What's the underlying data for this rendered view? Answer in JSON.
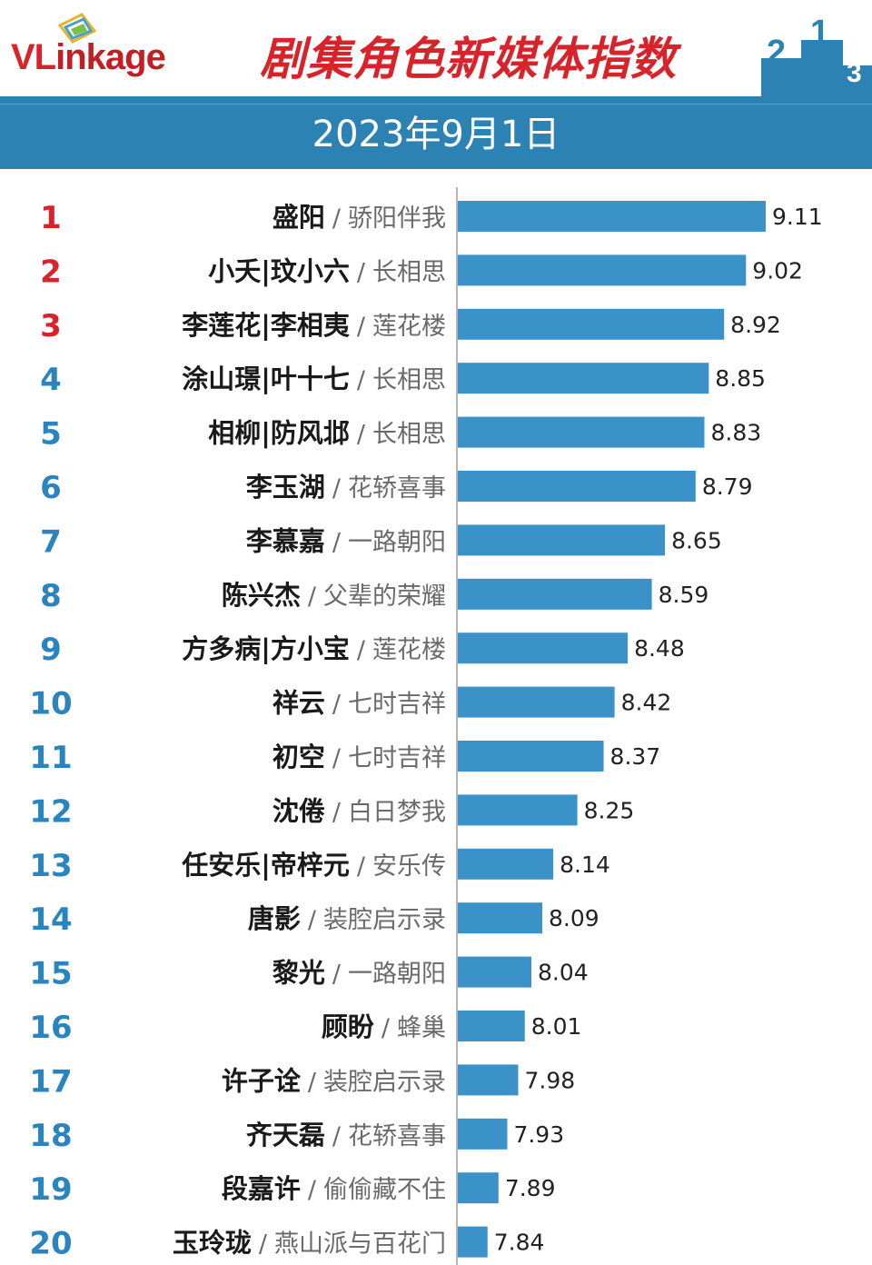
{
  "brand": {
    "logo_main": "VL",
    "logo_rest": "inkage"
  },
  "title": "剧集角色新媒体指数",
  "date": "2023年9月1日",
  "podium_digits": [
    "2",
    "1",
    "3"
  ],
  "colors": {
    "bar": "#3a92c8",
    "title": "#d9232a",
    "rank_top": "#d9232a",
    "rank_other": "#2a85be",
    "date_bar": "#2d82b4",
    "axis": "#b5b5b5"
  },
  "chart_data": {
    "type": "bar",
    "orientation": "horizontal",
    "rows": [
      {
        "rank": "1",
        "role": "盛阳",
        "drama": "骄阳伴我",
        "value": 9.11
      },
      {
        "rank": "2",
        "role": "小夭|玟小六",
        "drama": "长相思",
        "value": 9.02
      },
      {
        "rank": "3",
        "role": "李莲花|李相夷",
        "drama": "莲花楼",
        "value": 8.92
      },
      {
        "rank": "4",
        "role": "涂山璟|叶十七",
        "drama": "长相思",
        "value": 8.85
      },
      {
        "rank": "5",
        "role": "相柳|防风邶",
        "drama": "长相思",
        "value": 8.83
      },
      {
        "rank": "6",
        "role": "李玉湖",
        "drama": "花轿喜事",
        "value": 8.79
      },
      {
        "rank": "7",
        "role": "李慕嘉",
        "drama": "一路朝阳",
        "value": 8.65
      },
      {
        "rank": "8",
        "role": "陈兴杰",
        "drama": "父辈的荣耀",
        "value": 8.59
      },
      {
        "rank": "9",
        "role": "方多病|方小宝",
        "drama": "莲花楼",
        "value": 8.48
      },
      {
        "rank": "10",
        "role": "祥云",
        "drama": "七时吉祥",
        "value": 8.42
      },
      {
        "rank": "11",
        "role": "初空",
        "drama": "七时吉祥",
        "value": 8.37
      },
      {
        "rank": "12",
        "role": "沈倦",
        "drama": "白日梦我",
        "value": 8.25
      },
      {
        "rank": "13",
        "role": "任安乐|帝梓元",
        "drama": "安乐传",
        "value": 8.14
      },
      {
        "rank": "14",
        "role": "唐影",
        "drama": "装腔启示录",
        "value": 8.09
      },
      {
        "rank": "15",
        "role": "黎光",
        "drama": "一路朝阳",
        "value": 8.04
      },
      {
        "rank": "16",
        "role": "顾盼",
        "drama": "蜂巢",
        "value": 8.01
      },
      {
        "rank": "17",
        "role": "许子诠",
        "drama": "装腔启示录",
        "value": 7.98
      },
      {
        "rank": "18",
        "role": "齐天磊",
        "drama": "花轿喜事",
        "value": 7.93
      },
      {
        "rank": "19",
        "role": "段嘉许",
        "drama": "偷偷藏不住",
        "value": 7.89
      },
      {
        "rank": "20",
        "role": "玉玲珑",
        "drama": "燕山派与百花门",
        "value": 7.84
      }
    ],
    "xlim": [
      7.7,
      9.11
    ],
    "grid": false,
    "legend": "none"
  }
}
